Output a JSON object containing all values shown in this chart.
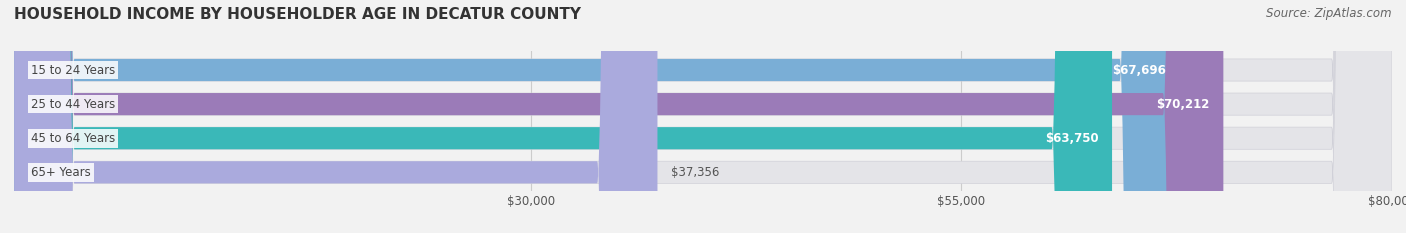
{
  "title": "HOUSEHOLD INCOME BY HOUSEHOLDER AGE IN DECATUR COUNTY",
  "source": "Source: ZipAtlas.com",
  "categories": [
    "15 to 24 Years",
    "25 to 44 Years",
    "45 to 64 Years",
    "65+ Years"
  ],
  "values": [
    67696,
    70212,
    63750,
    37356
  ],
  "bar_colors": [
    "#7aaed6",
    "#9b7bb8",
    "#3ab8b8",
    "#aaaadd"
  ],
  "bar_labels": [
    "$67,696",
    "$70,212",
    "$63,750",
    "$37,356"
  ],
  "label_inside": [
    true,
    true,
    true,
    false
  ],
  "xmin": 0,
  "xmax": 80000,
  "xticks": [
    30000,
    55000,
    80000
  ],
  "xticklabels": [
    "$30,000",
    "$55,000",
    "$80,000"
  ],
  "background_color": "#f2f2f2",
  "bar_bg_color": "#e4e4e8",
  "title_fontsize": 11,
  "source_fontsize": 8.5,
  "label_fontsize": 8.5,
  "tick_fontsize": 8.5,
  "cat_fontsize": 8.5,
  "bar_height": 0.65
}
